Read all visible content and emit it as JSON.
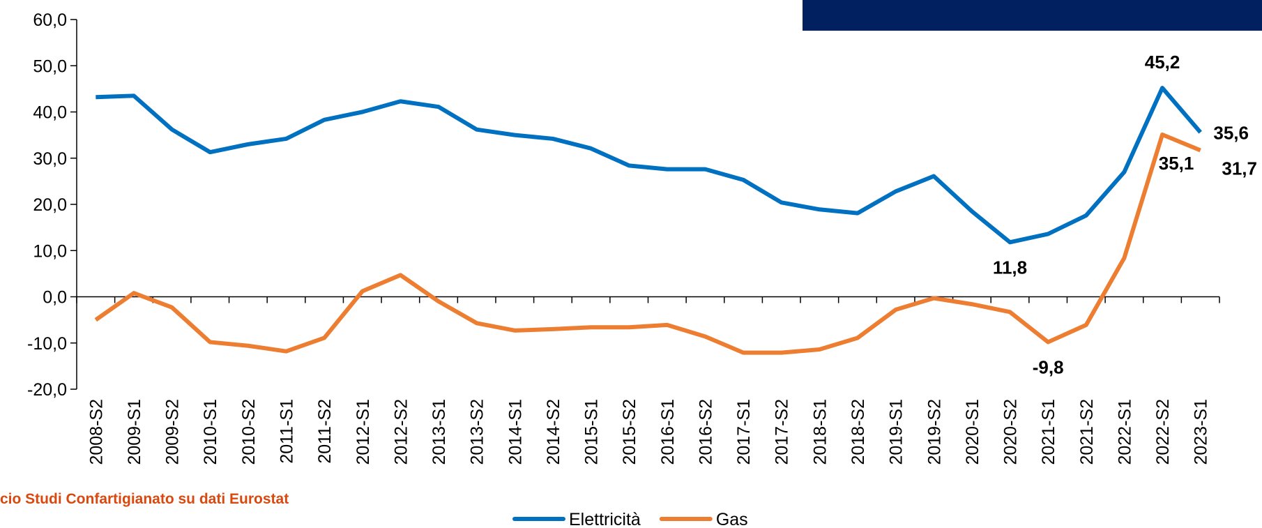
{
  "chart_data": {
    "type": "line",
    "source": "cio Studi Confartigianato su dati Eurostat",
    "categories": [
      "2008-S2",
      "2009-S1",
      "2009-S2",
      "2010-S1",
      "2010-S2",
      "2011-S1",
      "2011-S2",
      "2012-S1",
      "2012-S2",
      "2013-S1",
      "2013-S2",
      "2014-S1",
      "2014-S2",
      "2015-S1",
      "2015-S2",
      "2016-S1",
      "2016-S2",
      "2017-S1",
      "2017-S2",
      "2018-S1",
      "2018-S2",
      "2019-S1",
      "2019-S2",
      "2020-S1",
      "2020-S2",
      "2021-S1",
      "2021-S2",
      "2022-S1",
      "2022-S2",
      "2023-S1"
    ],
    "series": [
      {
        "name": "Elettricità",
        "color": "#0070c0",
        "values": [
          43.2,
          43.5,
          36.2,
          31.3,
          33.0,
          34.2,
          38.3,
          40.0,
          42.3,
          41.1,
          36.2,
          35.0,
          34.2,
          32.1,
          28.4,
          27.6,
          27.6,
          25.3,
          20.4,
          18.9,
          18.1,
          22.8,
          26.1,
          18.5,
          11.8,
          13.6,
          17.6,
          27.0,
          45.2,
          35.6
        ],
        "value_labels": [
          null,
          null,
          null,
          null,
          null,
          null,
          null,
          null,
          null,
          null,
          null,
          null,
          null,
          null,
          null,
          null,
          null,
          null,
          null,
          null,
          null,
          null,
          null,
          null,
          "11,8",
          null,
          null,
          null,
          "45,2",
          "35,6"
        ]
      },
      {
        "name": "Gas",
        "color": "#ed7d31",
        "values": [
          -5.0,
          0.8,
          -2.3,
          -9.8,
          -10.6,
          -11.8,
          -8.9,
          1.2,
          4.7,
          -1.0,
          -5.7,
          -7.3,
          -7.0,
          -6.6,
          -6.6,
          -6.1,
          -8.6,
          -12.1,
          -12.1,
          -11.4,
          -8.9,
          -2.8,
          -0.3,
          -1.6,
          -3.3,
          -9.8,
          -6.1,
          8.4,
          35.1,
          31.7
        ],
        "value_labels": [
          null,
          null,
          null,
          null,
          null,
          null,
          null,
          null,
          null,
          null,
          null,
          null,
          null,
          null,
          null,
          null,
          null,
          null,
          null,
          null,
          null,
          null,
          null,
          null,
          null,
          "-9,8",
          null,
          null,
          "35,1",
          "31,7"
        ]
      }
    ],
    "ylim": [
      -20,
      60
    ],
    "yticks": [
      {
        "value": -20,
        "label": "-20,0"
      },
      {
        "value": -10,
        "label": "-10,0"
      },
      {
        "value": 0,
        "label": "0,0"
      },
      {
        "value": 10,
        "label": "10,0"
      },
      {
        "value": 20,
        "label": "20,0"
      },
      {
        "value": 30,
        "label": "30,0"
      },
      {
        "value": 40,
        "label": "40,0"
      },
      {
        "value": 50,
        "label": "50,0"
      },
      {
        "value": 60,
        "label": "60,0"
      }
    ],
    "legend": "bottom"
  }
}
